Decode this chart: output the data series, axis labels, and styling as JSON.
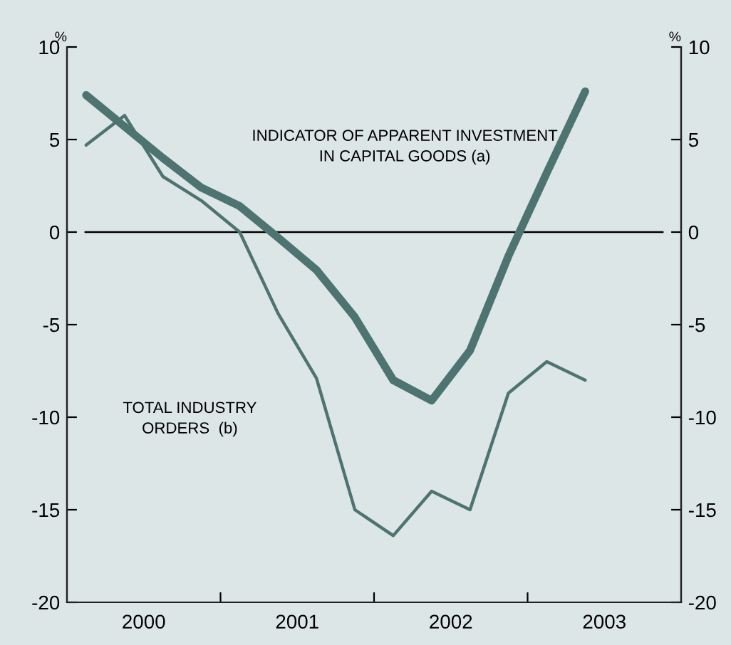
{
  "chart_data": {
    "type": "line",
    "ylabel": "%",
    "y2label": "%",
    "x": [
      2000.125,
      2000.375,
      2000.625,
      2000.875,
      2001.125,
      2001.375,
      2001.625,
      2001.875,
      2002.125,
      2002.375,
      2002.625,
      2002.875,
      2003.125,
      2003.375
    ],
    "series": [
      {
        "color": "#4d7470",
        "values": [
          7.4,
          5.7,
          4.0,
          2.4,
          1.4,
          -0.3,
          -2.05,
          -4.6,
          -8.0,
          -9.1,
          -6.4,
          -1.3,
          3.2,
          7.6
        ]
      },
      {
        "color": "#4d7470",
        "values": [
          4.7,
          6.3,
          3.0,
          1.7,
          0,
          -4.4,
          -7.9,
          -15.0,
          -16.4,
          -14.0,
          -15.0,
          -8.7,
          -7.0,
          -8.0
        ]
      }
    ],
    "xlim": [
      2000,
      2004
    ],
    "xticks": [
      {
        "value": 2000.5,
        "label": "2000"
      },
      {
        "value": 2001,
        "label": null
      },
      {
        "value": 2001.5,
        "label": "2001"
      },
      {
        "value": 2002,
        "label": null
      },
      {
        "value": 2002.5,
        "label": "2002"
      },
      {
        "value": 2003,
        "label": null
      },
      {
        "value": 2003.5,
        "label": "2003"
      }
    ],
    "ylim": [
      -20,
      10
    ],
    "yticks": [
      -20,
      -15,
      -10,
      -5,
      0,
      5,
      10
    ],
    "y2lim": [
      -20,
      10
    ],
    "y2ticks": [
      -20,
      -15,
      -10,
      -5,
      0,
      5,
      10
    ],
    "ref_lines": [
      {
        "axis": "y",
        "value": 0,
        "color": "#000000"
      }
    ],
    "annotations": [
      "INDICATOR OF APPARENT INVESTMENT\nIN CAPITAL GOODS (a)",
      "TOTAL INDUSTRY\nORDERS  (b)"
    ],
    "grid": false,
    "legend": false,
    "marker": "none",
    "line_style": "solid"
  }
}
